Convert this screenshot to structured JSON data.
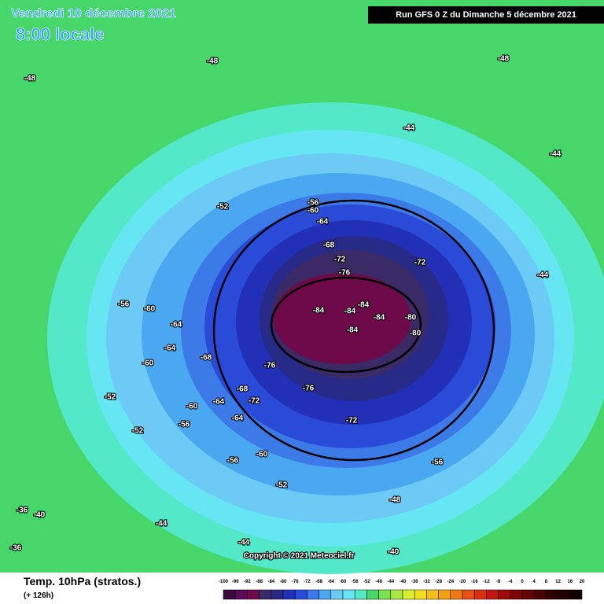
{
  "header": {
    "valid_date": "Vendredi 10 décembre 2021",
    "local_time": "8:00 locale",
    "run": "Run GFS 0 Z du Dimanche 5 décembre 2021"
  },
  "footer": {
    "parameter": "Temp. 10hPa (stratos.)",
    "lead": "(+ 126h)",
    "copyright": "Copyright © 2021 Meteociel.fr"
  },
  "legend": {
    "ticks": [
      -100,
      -96,
      -92,
      -88,
      -84,
      -80,
      -76,
      -72,
      -68,
      -64,
      -60,
      -56,
      -52,
      -48,
      -44,
      -40,
      -36,
      -32,
      -28,
      -24,
      -20,
      -16,
      -12,
      -8,
      -4,
      0,
      4,
      8,
      12,
      16,
      20
    ]
  },
  "contour_labels": [
    -84,
    -84,
    -84,
    -84,
    -84,
    -80,
    -80,
    -76,
    -72,
    -72,
    -68,
    -64,
    -60,
    -56,
    -76,
    -76,
    -72,
    -68,
    -68,
    -64,
    -64,
    -64,
    -60,
    -60,
    -56,
    -56,
    -52,
    -52,
    -52,
    -48,
    -48,
    -48,
    -48,
    -44,
    -44,
    -44,
    -44,
    -44,
    -40,
    -40,
    -36,
    -36,
    -56,
    -52,
    -60,
    -64,
    -72,
    -56,
    -60
  ]
}
